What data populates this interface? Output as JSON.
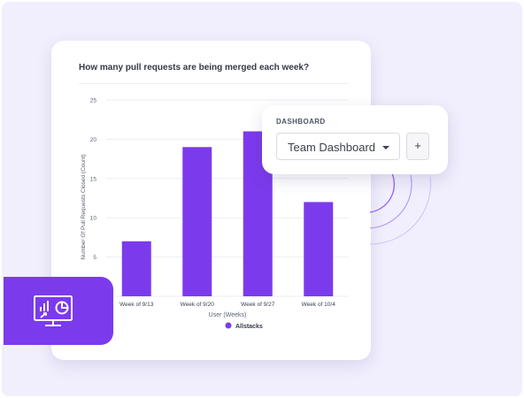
{
  "card": {
    "title": "How many pull requests are being merged each week?"
  },
  "chart_data": {
    "type": "bar",
    "categories": [
      "Week of 9/13",
      "Week of 9/20",
      "Week of 9/27",
      "Week of 10/4"
    ],
    "series": [
      {
        "name": "Allstacks",
        "values": [
          7,
          19,
          21,
          12
        ]
      }
    ],
    "ylim": [
      0,
      25
    ],
    "yticks": [
      0,
      5,
      10,
      15,
      20,
      25
    ],
    "ytick_labels": [
      "5",
      "10",
      "15",
      "20",
      "25"
    ],
    "xlabel": "User (Weeks)",
    "ylabel": "Number Of Pull Requests Closed (Count)",
    "grid": true,
    "legend_position": "bottom",
    "bar_color": "#7c3aed"
  },
  "popup": {
    "label": "DASHBOARD",
    "selected": "Team Dashboard",
    "add_label": "+"
  },
  "colors": {
    "accent": "#7c3aed",
    "background": "#f1effd"
  },
  "badge": {
    "icon": "dashboard-analytics-icon"
  }
}
